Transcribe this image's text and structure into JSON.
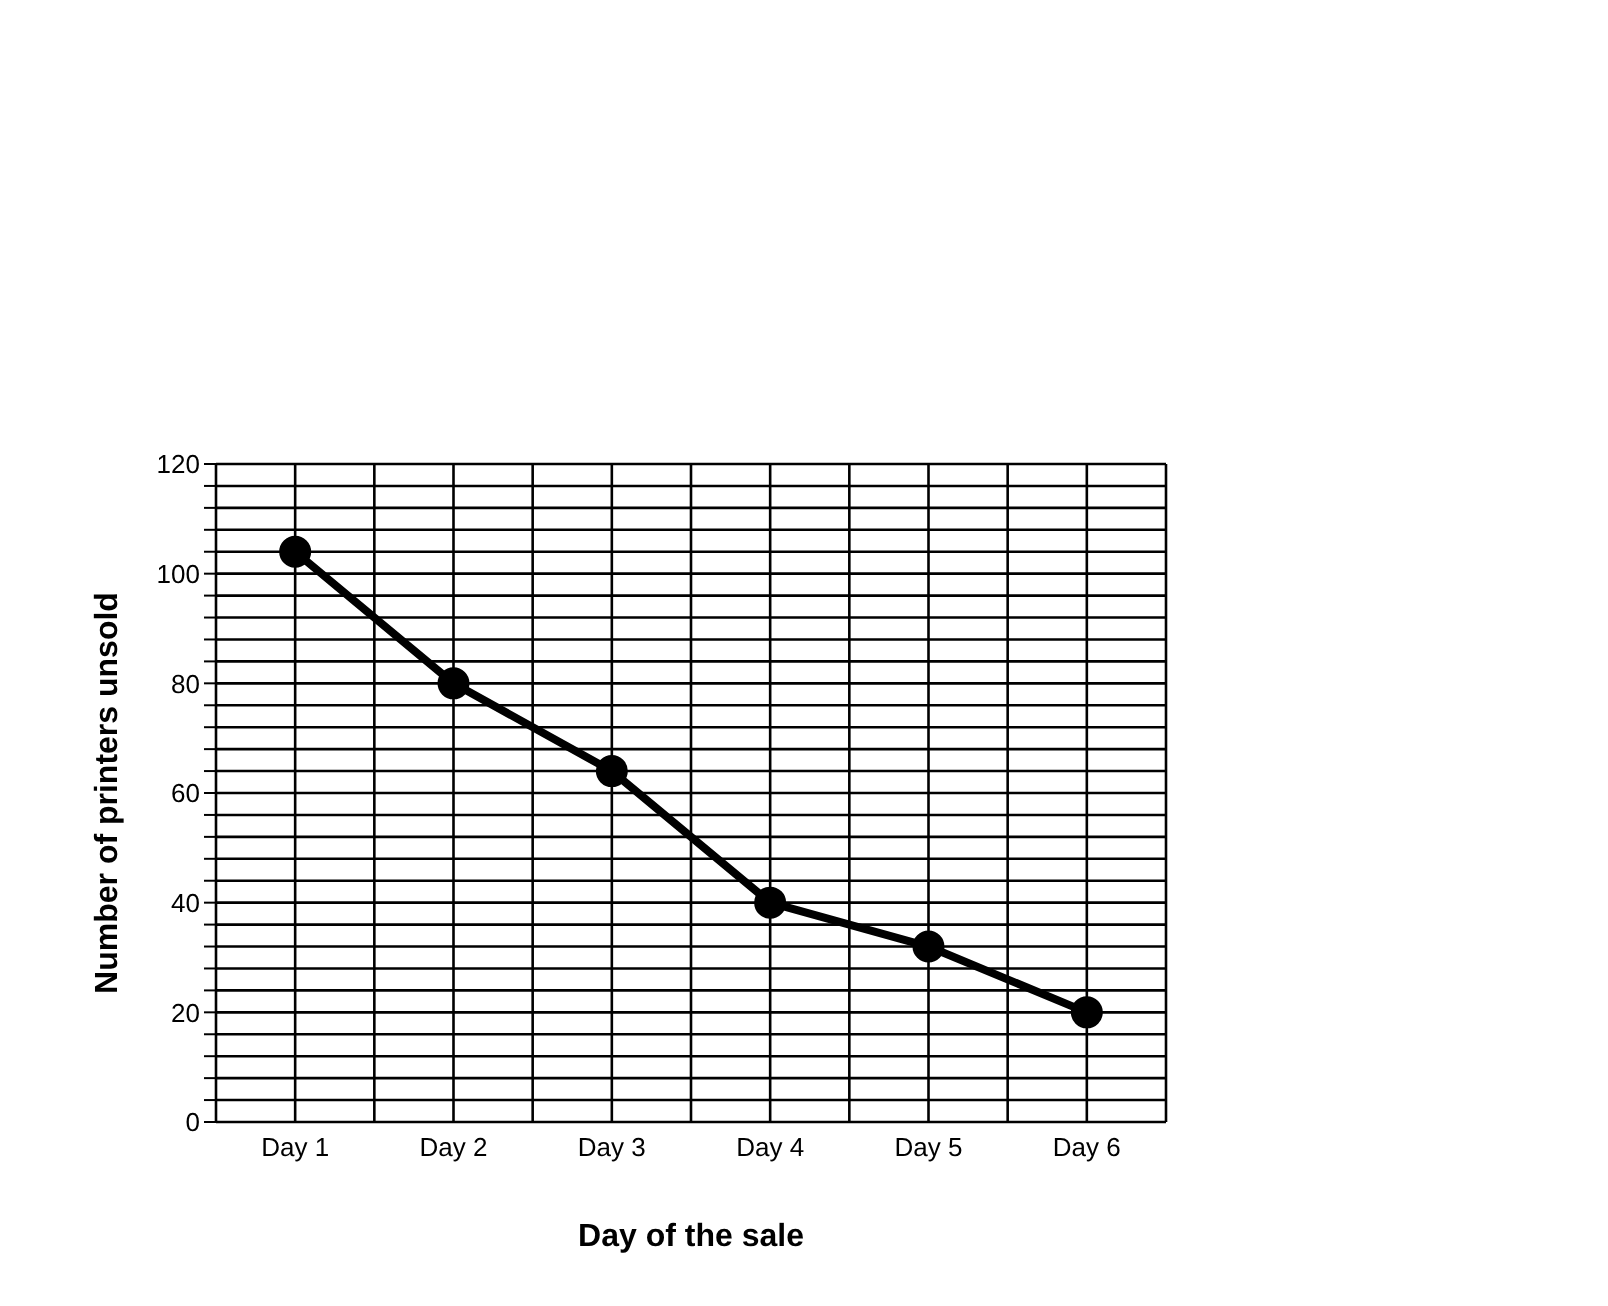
{
  "chart_data": {
    "type": "line",
    "xlabel": "Day of the sale",
    "ylabel": "Number of printers unsold",
    "categories": [
      "Day 1",
      "Day 2",
      "Day 3",
      "Day 4",
      "Day 5",
      "Day 6"
    ],
    "series": [
      {
        "color": "#000000",
        "values": [
          104,
          80,
          64,
          40,
          32,
          20
        ]
      }
    ],
    "ylim": [
      0,
      120
    ],
    "yticks": [
      0,
      {
        "value": 4,
        "label": null
      },
      {
        "value": 8,
        "label": null
      },
      {
        "value": 12,
        "label": null
      },
      {
        "value": 16,
        "label": null
      },
      20,
      {
        "value": 24,
        "label": null
      },
      {
        "value": 28,
        "label": null
      },
      {
        "value": 32,
        "label": null
      },
      {
        "value": 36,
        "label": null
      },
      40,
      {
        "value": 44,
        "label": null
      },
      {
        "value": 48,
        "label": null
      },
      {
        "value": 52,
        "label": null
      },
      {
        "value": 56,
        "label": null
      },
      60,
      {
        "value": 64,
        "label": null
      },
      {
        "value": 68,
        "label": null
      },
      {
        "value": 72,
        "label": null
      },
      {
        "value": 76,
        "label": null
      },
      80,
      {
        "value": 84,
        "label": null
      },
      {
        "value": 88,
        "label": null
      },
      {
        "value": 92,
        "label": null
      },
      {
        "value": 96,
        "label": null
      },
      100,
      {
        "value": 104,
        "label": null
      },
      {
        "value": 108,
        "label": null
      },
      {
        "value": 112,
        "label": null
      },
      {
        "value": 116,
        "label": null
      },
      120
    ],
    "grid": true,
    "marker": "circle",
    "line_style": "solid",
    "legend": false
  }
}
